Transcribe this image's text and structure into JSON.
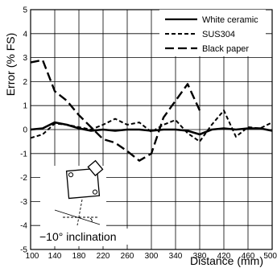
{
  "chart_data": {
    "type": "line",
    "xlabel": "Distance (mm)",
    "ylabel": "Error (% FS)",
    "xlim": [
      100,
      500
    ],
    "ylim": [
      -5,
      5
    ],
    "x_ticks": [
      100,
      140,
      180,
      220,
      260,
      300,
      340,
      380,
      420,
      460,
      500
    ],
    "y_ticks": [
      5,
      4,
      3,
      2,
      1,
      0,
      -1,
      -2,
      -3,
      -4,
      -5
    ],
    "grid": true,
    "legend_position": "top-right",
    "annotation": "−10° inclination",
    "series": [
      {
        "name": "White ceramic",
        "style": "solid",
        "x": [
          100,
          120,
          140,
          160,
          180,
          200,
          220,
          240,
          260,
          280,
          300,
          320,
          340,
          360,
          380,
          400,
          420,
          440,
          460,
          480,
          500
        ],
        "y": [
          0.0,
          0.05,
          0.3,
          0.2,
          0.05,
          -0.05,
          0.0,
          -0.05,
          0.0,
          0.0,
          -0.05,
          0.0,
          0.0,
          -0.05,
          -0.2,
          0.0,
          0.05,
          0.0,
          0.05,
          0.05,
          -0.05
        ]
      },
      {
        "name": "SUS304",
        "style": "short-dash",
        "x": [
          100,
          120,
          140,
          160,
          180,
          200,
          220,
          240,
          260,
          280,
          300,
          320,
          340,
          360,
          380,
          400,
          420,
          440,
          460,
          480,
          500
        ],
        "y": [
          -0.35,
          -0.2,
          0.25,
          0.2,
          0.1,
          0.0,
          0.2,
          0.45,
          0.2,
          0.3,
          -0.1,
          0.2,
          0.4,
          -0.15,
          -0.5,
          0.2,
          0.8,
          -0.3,
          0.1,
          0.05,
          0.3
        ]
      },
      {
        "name": "Black paper",
        "style": "long-dash",
        "x": [
          100,
          120,
          140,
          160,
          180,
          200,
          220,
          240,
          260,
          280,
          300,
          320,
          340,
          360,
          380
        ],
        "y": [
          2.8,
          2.9,
          1.6,
          1.2,
          0.6,
          0.1,
          -0.4,
          -0.55,
          -0.9,
          -1.3,
          -1.0,
          0.5,
          1.2,
          1.9,
          0.8
        ]
      }
    ]
  }
}
